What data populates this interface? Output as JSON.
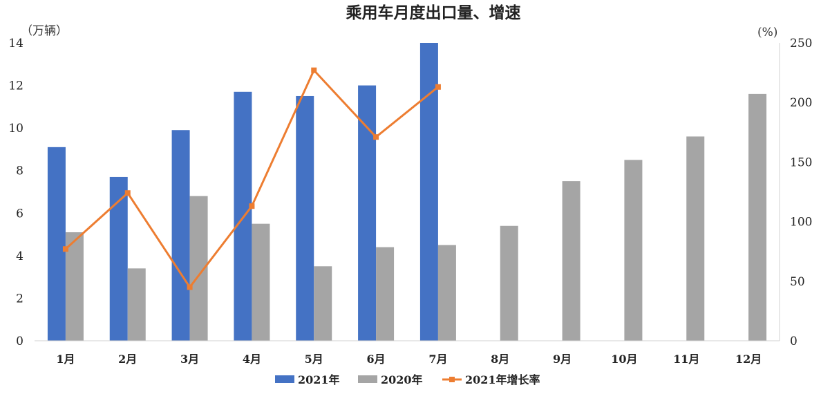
{
  "chart_data": {
    "type": "bar",
    "title": "乘用车月度出口量、增速",
    "y_left_unit": "（万辆）",
    "y_right_unit": "(%)",
    "categories": [
      "1月",
      "2月",
      "3月",
      "4月",
      "5月",
      "6月",
      "7月",
      "8月",
      "9月",
      "10月",
      "11月",
      "12月"
    ],
    "ylim_left": [
      0,
      14
    ],
    "yticks_left": [
      "0",
      "2",
      "4",
      "6",
      "8",
      "10",
      "12",
      "14"
    ],
    "ylim_right": [
      0,
      250
    ],
    "yticks_right": [
      "0",
      "50",
      "100",
      "150",
      "200",
      "250"
    ],
    "series": [
      {
        "name": "2021年",
        "type": "bar",
        "axis": "left",
        "color": "#4472C4",
        "values": [
          9.1,
          7.7,
          9.9,
          11.7,
          11.5,
          12.0,
          14.0,
          null,
          null,
          null,
          null,
          null
        ]
      },
      {
        "name": "2020年",
        "type": "bar",
        "axis": "left",
        "color": "#A5A5A5",
        "values": [
          5.1,
          3.4,
          6.8,
          5.5,
          3.5,
          4.4,
          4.5,
          5.4,
          7.5,
          8.5,
          9.6,
          11.6
        ]
      },
      {
        "name": "2021年增长率",
        "type": "line",
        "axis": "right",
        "color": "#ED7D31",
        "values": [
          77,
          124,
          45,
          113,
          227,
          171,
          213,
          null,
          null,
          null,
          null,
          null
        ]
      }
    ],
    "grid": false,
    "legend_position": "bottom"
  }
}
